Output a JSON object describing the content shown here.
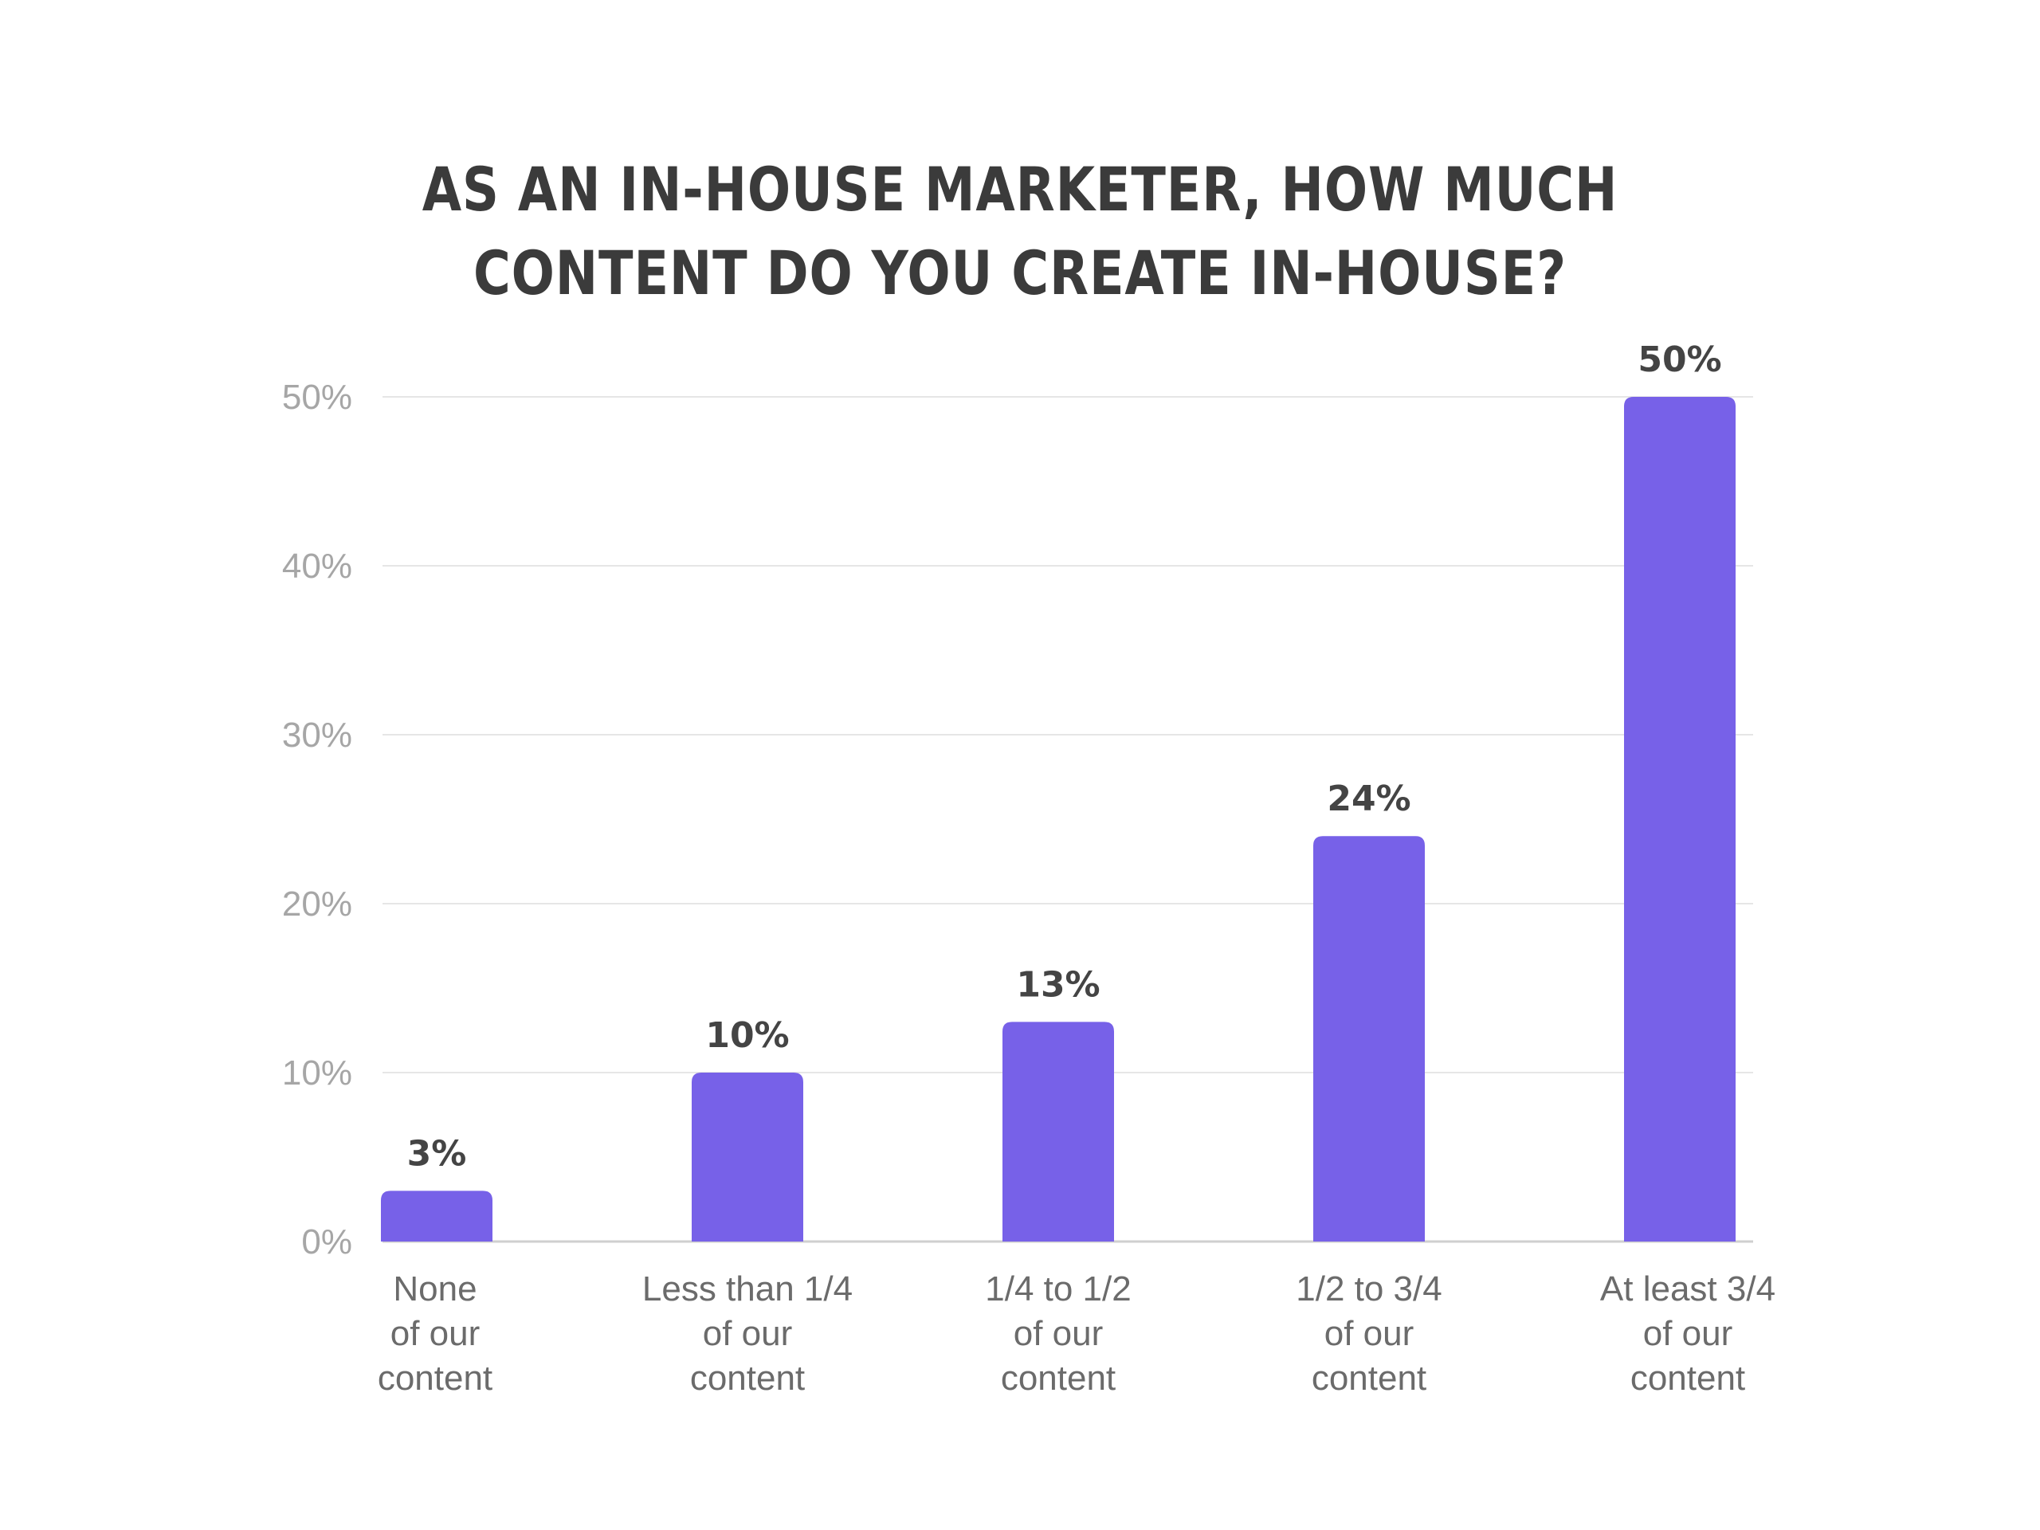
{
  "chart_data": {
    "type": "bar",
    "title_lines": [
      "AS AN IN-HOUSE MARKETER, HOW MUCH",
      "CONTENT DO YOU CREATE IN-HOUSE?"
    ],
    "categories": [
      [
        "None",
        "of our",
        "content"
      ],
      [
        "Less than 1/4",
        "of our",
        "content"
      ],
      [
        "1/4 to 1/2",
        "of our",
        "content"
      ],
      [
        "1/2 to 3/4",
        "of our",
        "content"
      ],
      [
        "At least 3/4",
        "of our",
        "content"
      ]
    ],
    "values": [
      3,
      10,
      13,
      24,
      50
    ],
    "value_labels": [
      "3%",
      "10%",
      "13%",
      "24%",
      "50%"
    ],
    "yticks": [
      0,
      10,
      20,
      30,
      40,
      50
    ],
    "ytick_labels": [
      "0%",
      "10%",
      "20%",
      "30%",
      "40%",
      "50%"
    ],
    "ylim": [
      0,
      50
    ],
    "xlabel": "",
    "ylabel": "",
    "grid": true,
    "legend": "none",
    "bar_color": "#7761e8",
    "text_color": "#3b3b3b",
    "tick_color": "#a6a6a6",
    "grid_color": "#e6e6e6"
  }
}
